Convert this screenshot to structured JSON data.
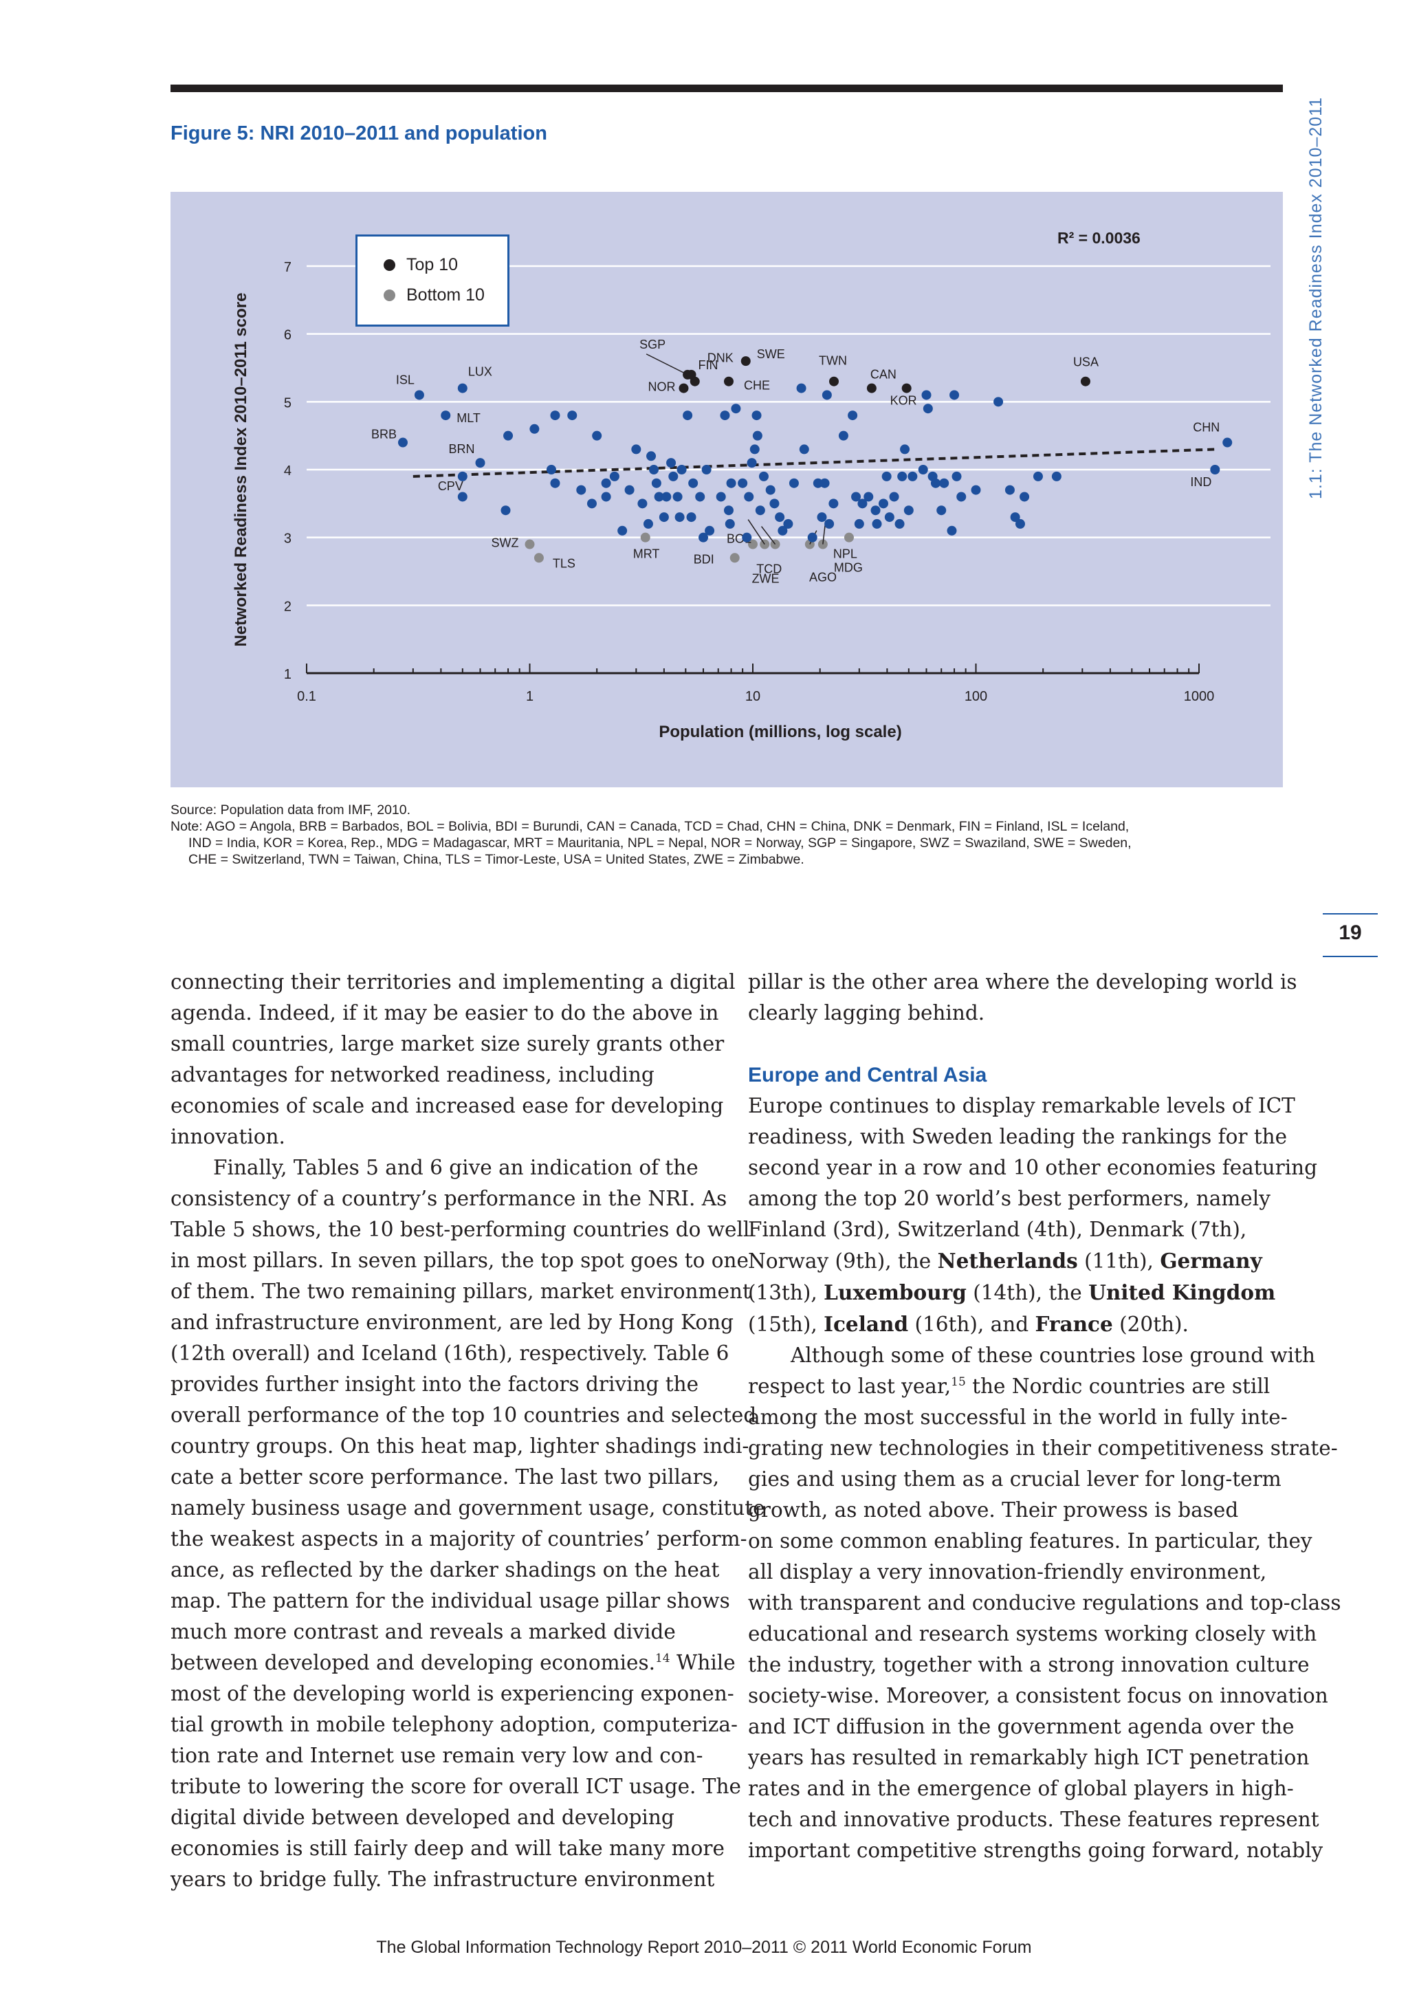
{
  "figure": {
    "title": "Figure 5: NRI 2010–2011 and population"
  },
  "side_header": "1.1: The Networked Readiness Index 2010–2011",
  "page_number": "19",
  "colors": {
    "accent": "#1e5aa6",
    "chart_bg": "#c9cde6",
    "country_dot": "#1d4f9c",
    "top10_dot": "#231f20",
    "bottom10_dot": "#8a8a8a",
    "gridline": "#ffffff"
  },
  "chart_data": {
    "type": "scatter",
    "title": "",
    "xlabel": "Population (millions, log scale)",
    "ylabel": "Networked Readiness Index 2010–2011 score",
    "x_scale": "log",
    "xlim": [
      0.1,
      1000
    ],
    "ylim": [
      1,
      7
    ],
    "x_ticks": [
      "0.1",
      "1",
      "10",
      "100",
      "1000"
    ],
    "y_ticks": [
      "1",
      "2",
      "3",
      "4",
      "5",
      "6",
      "7"
    ],
    "grid": "horizontal",
    "legend": {
      "position": "top-left",
      "entries": [
        "Top 10",
        "Bottom 10"
      ]
    },
    "r_squared": "R² = 0.0036",
    "trend_line": {
      "x": [
        0.3,
        1200
      ],
      "y": [
        3.9,
        4.3
      ],
      "style": "dashed"
    },
    "series": [
      {
        "name": "Top 10",
        "points": [
          {
            "label": "SGP",
            "x": 5.1,
            "y": 5.4
          },
          {
            "label": "DNK",
            "x": 5.5,
            "y": 5.3
          },
          {
            "label": "FIN",
            "x": 5.3,
            "y": 5.4
          },
          {
            "label": "SWE",
            "x": 9.3,
            "y": 5.6
          },
          {
            "label": "NOR",
            "x": 4.9,
            "y": 5.2
          },
          {
            "label": "CHE",
            "x": 7.8,
            "y": 5.3
          },
          {
            "label": "TWN",
            "x": 23.1,
            "y": 5.3
          },
          {
            "label": "CAN",
            "x": 34.1,
            "y": 5.2
          },
          {
            "label": "KOR",
            "x": 48.9,
            "y": 5.2
          },
          {
            "label": "USA",
            "x": 310,
            "y": 5.3
          }
        ]
      },
      {
        "name": "Bottom 10",
        "points": [
          {
            "label": "SWZ",
            "x": 1.0,
            "y": 2.9
          },
          {
            "label": "TLS",
            "x": 1.1,
            "y": 2.7
          },
          {
            "label": "MRT",
            "x": 3.3,
            "y": 3.0
          },
          {
            "label": "BDI",
            "x": 8.3,
            "y": 2.7
          },
          {
            "label": "BOL",
            "x": 10.0,
            "y": 2.9
          },
          {
            "label": "TCD",
            "x": 11.3,
            "y": 2.9
          },
          {
            "label": "ZWE",
            "x": 12.6,
            "y": 2.9
          },
          {
            "label": "NPL",
            "x": 18,
            "y": 2.9
          },
          {
            "label": "MDG",
            "x": 20.6,
            "y": 2.9
          },
          {
            "label": "AGO",
            "x": 27.0,
            "y": 3.0
          }
        ]
      },
      {
        "name": "",
        "points": [
          {
            "label": "ISL",
            "x": 0.32,
            "y": 5.1
          },
          {
            "label": "LUX",
            "x": 0.5,
            "y": 5.2
          },
          {
            "label": "MLT",
            "x": 0.42,
            "y": 4.8
          },
          {
            "label": "BRB",
            "x": 0.27,
            "y": 4.4
          },
          {
            "label": "BRN",
            "x": 0.6,
            "y": 4.1
          },
          {
            "label": "CPV",
            "x": 0.5,
            "y": 3.9
          },
          {
            "label": "CHN",
            "x": 1340,
            "y": 4.4
          },
          {
            "label": "IND",
            "x": 1180,
            "y": 4.0
          },
          {
            "label": "",
            "x": 0.5,
            "y": 3.6
          },
          {
            "label": "",
            "x": 0.78,
            "y": 3.4
          },
          {
            "label": "",
            "x": 0.8,
            "y": 4.5
          },
          {
            "label": "",
            "x": 1.05,
            "y": 4.6
          },
          {
            "label": "",
            "x": 1.3,
            "y": 4.8
          },
          {
            "label": "",
            "x": 1.55,
            "y": 4.8
          },
          {
            "label": "",
            "x": 1.25,
            "y": 4.0
          },
          {
            "label": "",
            "x": 1.3,
            "y": 3.8
          },
          {
            "label": "",
            "x": 1.7,
            "y": 3.7
          },
          {
            "label": "",
            "x": 1.9,
            "y": 3.5
          },
          {
            "label": "",
            "x": 2.0,
            "y": 4.5
          },
          {
            "label": "",
            "x": 2.2,
            "y": 3.8
          },
          {
            "label": "",
            "x": 2.2,
            "y": 3.6
          },
          {
            "label": "",
            "x": 2.4,
            "y": 3.9
          },
          {
            "label": "",
            "x": 2.6,
            "y": 3.1
          },
          {
            "label": "",
            "x": 2.8,
            "y": 3.7
          },
          {
            "label": "",
            "x": 3.0,
            "y": 4.3
          },
          {
            "label": "",
            "x": 3.2,
            "y": 3.5
          },
          {
            "label": "",
            "x": 3.4,
            "y": 3.2
          },
          {
            "label": "",
            "x": 3.5,
            "y": 4.2
          },
          {
            "label": "",
            "x": 3.6,
            "y": 4.0
          },
          {
            "label": "",
            "x": 3.7,
            "y": 3.8
          },
          {
            "label": "",
            "x": 3.8,
            "y": 3.6
          },
          {
            "label": "",
            "x": 4.0,
            "y": 3.3
          },
          {
            "label": "",
            "x": 4.1,
            "y": 3.6
          },
          {
            "label": "",
            "x": 4.3,
            "y": 4.1
          },
          {
            "label": "",
            "x": 4.4,
            "y": 3.9
          },
          {
            "label": "",
            "x": 4.6,
            "y": 3.6
          },
          {
            "label": "",
            "x": 4.7,
            "y": 3.3
          },
          {
            "label": "",
            "x": 4.8,
            "y": 4.0
          },
          {
            "label": "",
            "x": 5.1,
            "y": 4.8
          },
          {
            "label": "",
            "x": 5.3,
            "y": 3.3
          },
          {
            "label": "",
            "x": 5.4,
            "y": 3.8
          },
          {
            "label": "",
            "x": 5.8,
            "y": 3.6
          },
          {
            "label": "",
            "x": 6.0,
            "y": 3.0
          },
          {
            "label": "",
            "x": 6.2,
            "y": 4.0
          },
          {
            "label": "",
            "x": 6.4,
            "y": 3.1
          },
          {
            "label": "",
            "x": 7.2,
            "y": 3.6
          },
          {
            "label": "",
            "x": 7.5,
            "y": 4.8
          },
          {
            "label": "",
            "x": 7.8,
            "y": 3.4
          },
          {
            "label": "",
            "x": 7.9,
            "y": 3.2
          },
          {
            "label": "",
            "x": 8.0,
            "y": 3.8
          },
          {
            "label": "",
            "x": 8.4,
            "y": 4.9
          },
          {
            "label": "",
            "x": 9.0,
            "y": 3.8
          },
          {
            "label": "",
            "x": 9.4,
            "y": 3.0
          },
          {
            "label": "",
            "x": 9.6,
            "y": 3.6
          },
          {
            "label": "",
            "x": 9.9,
            "y": 4.1
          },
          {
            "label": "",
            "x": 10.2,
            "y": 4.3
          },
          {
            "label": "",
            "x": 10.4,
            "y": 4.8
          },
          {
            "label": "",
            "x": 10.5,
            "y": 4.5
          },
          {
            "label": "",
            "x": 10.8,
            "y": 3.4
          },
          {
            "label": "",
            "x": 11.2,
            "y": 3.9
          },
          {
            "label": "",
            "x": 12.0,
            "y": 3.7
          },
          {
            "label": "",
            "x": 12.5,
            "y": 3.5
          },
          {
            "label": "",
            "x": 13.2,
            "y": 3.3
          },
          {
            "label": "",
            "x": 13.6,
            "y": 3.1
          },
          {
            "label": "",
            "x": 14.4,
            "y": 3.2
          },
          {
            "label": "",
            "x": 15.3,
            "y": 3.8
          },
          {
            "label": "",
            "x": 16.5,
            "y": 5.2
          },
          {
            "label": "",
            "x": 17.0,
            "y": 4.3
          },
          {
            "label": "",
            "x": 18.5,
            "y": 3.0
          },
          {
            "label": "",
            "x": 19.6,
            "y": 3.8
          },
          {
            "label": "",
            "x": 20.4,
            "y": 3.3
          },
          {
            "label": "",
            "x": 21.0,
            "y": 3.8
          },
          {
            "label": "",
            "x": 21.5,
            "y": 5.1
          },
          {
            "label": "",
            "x": 22.0,
            "y": 3.2
          },
          {
            "label": "",
            "x": 23.0,
            "y": 3.5
          },
          {
            "label": "",
            "x": 25.5,
            "y": 4.5
          },
          {
            "label": "",
            "x": 28.0,
            "y": 4.8
          },
          {
            "label": "",
            "x": 29.0,
            "y": 3.6
          },
          {
            "label": "",
            "x": 30.0,
            "y": 3.2
          },
          {
            "label": "",
            "x": 31.0,
            "y": 3.5
          },
          {
            "label": "",
            "x": 33.0,
            "y": 3.6
          },
          {
            "label": "",
            "x": 35.5,
            "y": 3.4
          },
          {
            "label": "",
            "x": 36.0,
            "y": 3.2
          },
          {
            "label": "",
            "x": 38.5,
            "y": 3.5
          },
          {
            "label": "",
            "x": 39.8,
            "y": 3.9
          },
          {
            "label": "",
            "x": 41.0,
            "y": 3.3
          },
          {
            "label": "",
            "x": 43.0,
            "y": 3.6
          },
          {
            "label": "",
            "x": 45.5,
            "y": 3.2
          },
          {
            "label": "",
            "x": 46.7,
            "y": 3.9
          },
          {
            "label": "",
            "x": 48.0,
            "y": 4.3
          },
          {
            "label": "",
            "x": 50.0,
            "y": 3.4
          },
          {
            "label": "",
            "x": 52.0,
            "y": 3.9
          },
          {
            "label": "",
            "x": 58.0,
            "y": 4.0
          },
          {
            "label": "",
            "x": 60.0,
            "y": 5.1
          },
          {
            "label": "",
            "x": 61.0,
            "y": 4.9
          },
          {
            "label": "",
            "x": 64.0,
            "y": 3.9
          },
          {
            "label": "",
            "x": 66.0,
            "y": 3.8
          },
          {
            "label": "",
            "x": 70.0,
            "y": 3.4
          },
          {
            "label": "",
            "x": 72.0,
            "y": 3.8
          },
          {
            "label": "",
            "x": 78.0,
            "y": 3.1
          },
          {
            "label": "",
            "x": 80.0,
            "y": 5.1
          },
          {
            "label": "",
            "x": 82.0,
            "y": 3.9
          },
          {
            "label": "",
            "x": 86.0,
            "y": 3.6
          },
          {
            "label": "",
            "x": 100.0,
            "y": 3.7
          },
          {
            "label": "",
            "x": 126.0,
            "y": 5.0
          },
          {
            "label": "",
            "x": 142.0,
            "y": 3.7
          },
          {
            "label": "",
            "x": 150.0,
            "y": 3.3
          },
          {
            "label": "",
            "x": 158.0,
            "y": 3.2
          },
          {
            "label": "",
            "x": 165.0,
            "y": 3.6
          },
          {
            "label": "",
            "x": 190.0,
            "y": 3.9
          },
          {
            "label": "",
            "x": 230.0,
            "y": 3.9
          }
        ]
      }
    ]
  },
  "notes": {
    "source": "Source: Population data from IMF, 2010.",
    "note_lines": [
      "Note: AGO = Angola, BRB = Barbados, BOL = Bolivia, BDI = Burundi, CAN = Canada, TCD = Chad, CHN = China, DNK = Denmark, FIN = Finland, ISL = Iceland,",
      "IND = India, KOR = Korea, Rep., MDG = Madagascar, MRT = Mauritania, NPL = Nepal, NOR = Norway, SGP = Singapore, SWZ = Swaziland, SWE = Sweden,",
      "CHE = Switzerland, TWN = Taiwan, China, TLS = Timor-Leste, USA = United States, ZWE = Zimbabwe."
    ]
  },
  "body": {
    "left_lines": [
      "connecting their territories and implementing a digital",
      "agenda. Indeed, if it may be easier to do the above in",
      "small countries, large market size surely grants other",
      "advantages for networked readiness, including",
      "economies of scale and increased ease for developing",
      "innovation.",
      "Finally, Tables 5 and 6 give an indication of the",
      "consistency of a country’s performance in the NRI. As",
      "Table 5 shows, the 10 best-performing countries do well",
      "in most pillars. In seven pillars, the top spot goes to one",
      "of them. The two remaining pillars, market environment",
      "and infrastructure environment, are led by Hong Kong",
      "(12th overall) and Iceland (16th), respectively. Table 6",
      "provides further insight into the factors driving the",
      "overall performance of the top 10 countries and selected",
      "country groups. On this heat map, lighter shadings indi-",
      "cate a better score performance. The last two pillars,",
      "namely business usage and government usage, constitute",
      "the weakest aspects in a majority of countries’ perform-",
      "ance, as reflected by the darker shadings on the heat",
      "map. The pattern for the individual usage pillar shows",
      "much more contrast and reveals a marked divide",
      "between developed and developing economies.",
      "tial growth in mobile telephony adoption, computeriza-",
      "tion rate and Internet use remain very low and con-",
      "tribute to lowering the score for overall ICT usage. The",
      "digital divide between developed and developing",
      "economies is still fairly deep and will take many more",
      "years to bridge fully. The infrastructure environment"
    ],
    "left_footnote_line": {
      "before": "between developed and developing economies.",
      "sup": "14",
      "after": " While",
      "next": "most of the developing world is experiencing exponen-"
    },
    "right_intro": [
      "pillar is the other area where the developing world is",
      "clearly lagging behind."
    ],
    "section_heading": "Europe and Central Asia",
    "right_para1": [
      "Europe continues to display remarkable levels of ICT",
      "readiness, with Sweden leading the rankings for the",
      "second year in a row and 10 other economies featuring",
      "among the top 20 world’s best performers, namely",
      "Finland (3rd), Switzerland (4th), Denmark (7th),"
    ],
    "right_bold_lines": {
      "l1_a": "Norway (9th), the ",
      "l1_b": "Netherlands",
      "l1_c": " (11th), ",
      "l1_d": "Germany",
      "l2_a": "(13th), ",
      "l2_b": "Luxembourg",
      "l2_c": " (14th), the ",
      "l2_d": "United Kingdom",
      "l3_a": "(15th), ",
      "l3_b": "Iceland",
      "l3_c": " (16th), and ",
      "l3_d": "France",
      "l3_e": " (20th)."
    },
    "right_para2_first": {
      "before": "Although some of these countries lose ground with",
      "line2_a": "respect to last year,",
      "line2_sup": "15",
      "line2_b": " the Nordic countries are still"
    },
    "right_para2_rest": [
      "among the most successful in the world in fully inte-",
      "grating new technologies in their competitiveness strate-",
      "gies and using them as a crucial lever for long-term",
      "growth, as noted above. Their prowess is based",
      "on some common enabling features. In particular, they",
      "all display a very innovation-friendly environment,",
      "with transparent and conducive regulations and top-class",
      "educational and research systems working closely with",
      "the industry, together with a strong innovation culture",
      "society-wise. Moreover, a consistent focus on innovation",
      "and ICT diffusion in the government agenda over the",
      "years has resulted in remarkably high ICT penetration",
      "rates and in the emergence of global players in high-",
      "tech and innovative products. These features represent",
      "important competitive strengths going forward, notably"
    ]
  },
  "footer": "The Global Information Technology Report 2010–2011 © 2011 World Economic Forum"
}
